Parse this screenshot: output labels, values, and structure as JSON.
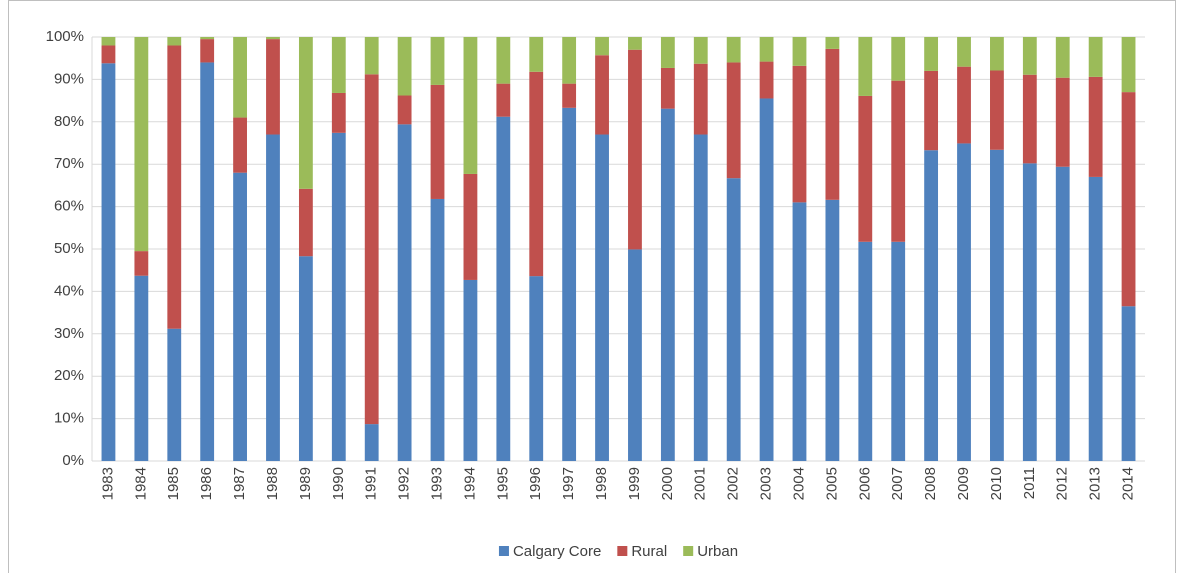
{
  "chart_data": {
    "type": "stacked_bar_100",
    "categories": [
      "1983",
      "1984",
      "1985",
      "1986",
      "1987",
      "1988",
      "1989",
      "1990",
      "1991",
      "1992",
      "1993",
      "1994",
      "1995",
      "1996",
      "1997",
      "1998",
      "1999",
      "2000",
      "2001",
      "2002",
      "2003",
      "2004",
      "2005",
      "2006",
      "2007",
      "2008",
      "2009",
      "2010",
      "2011",
      "2012",
      "2013",
      "2014"
    ],
    "series": [
      {
        "name": "Calgary Core",
        "color": "#4f81bd",
        "values": [
          93.8,
          43.7,
          31.2,
          94,
          68,
          77,
          48.3,
          77.4,
          8.7,
          79.4,
          61.8,
          42.7,
          81.2,
          43.6,
          83.3,
          77,
          49.9,
          83.1,
          77,
          66.7,
          85.5,
          61,
          61.6,
          51.7,
          51.7,
          73.3,
          74.9,
          73.4,
          70.2,
          69.4,
          67,
          36.5
        ]
      },
      {
        "name": "Rural",
        "color": "#c0504d",
        "values": [
          4.2,
          5.8,
          66.8,
          5.5,
          13,
          22.5,
          15.9,
          9.4,
          82.5,
          6.8,
          26.9,
          25,
          7.8,
          48.2,
          5.7,
          18.7,
          47.1,
          9.6,
          16.7,
          27.3,
          8.7,
          32.2,
          35.6,
          34.4,
          38,
          18.7,
          18.1,
          18.7,
          20.9,
          21,
          23.6,
          50.5
        ]
      },
      {
        "name": "Urban",
        "color": "#9bbb59",
        "values": [
          2,
          50.5,
          2,
          0.5,
          19,
          0.5,
          35.8,
          13.2,
          8.8,
          13.8,
          11.3,
          32.3,
          11,
          8.2,
          11,
          4.3,
          3,
          7.3,
          6.3,
          6,
          5.8,
          6.8,
          2.8,
          13.9,
          10.3,
          8,
          7,
          7.9,
          8.9,
          9.6,
          9.4,
          13
        ]
      }
    ],
    "ylim": [
      0,
      100
    ],
    "yticks": [
      {
        "value": 0,
        "label": "0%"
      },
      {
        "value": 10,
        "label": "10%"
      },
      {
        "value": 20,
        "label": "20%"
      },
      {
        "value": 30,
        "label": "30%"
      },
      {
        "value": 40,
        "label": "40%"
      },
      {
        "value": 50,
        "label": "50%"
      },
      {
        "value": 60,
        "label": "60%"
      },
      {
        "value": 70,
        "label": "70%"
      },
      {
        "value": 80,
        "label": "80%"
      },
      {
        "value": 90,
        "label": "90%"
      },
      {
        "value": 100,
        "label": "100%"
      }
    ],
    "grid": true,
    "legend": "bottom"
  }
}
